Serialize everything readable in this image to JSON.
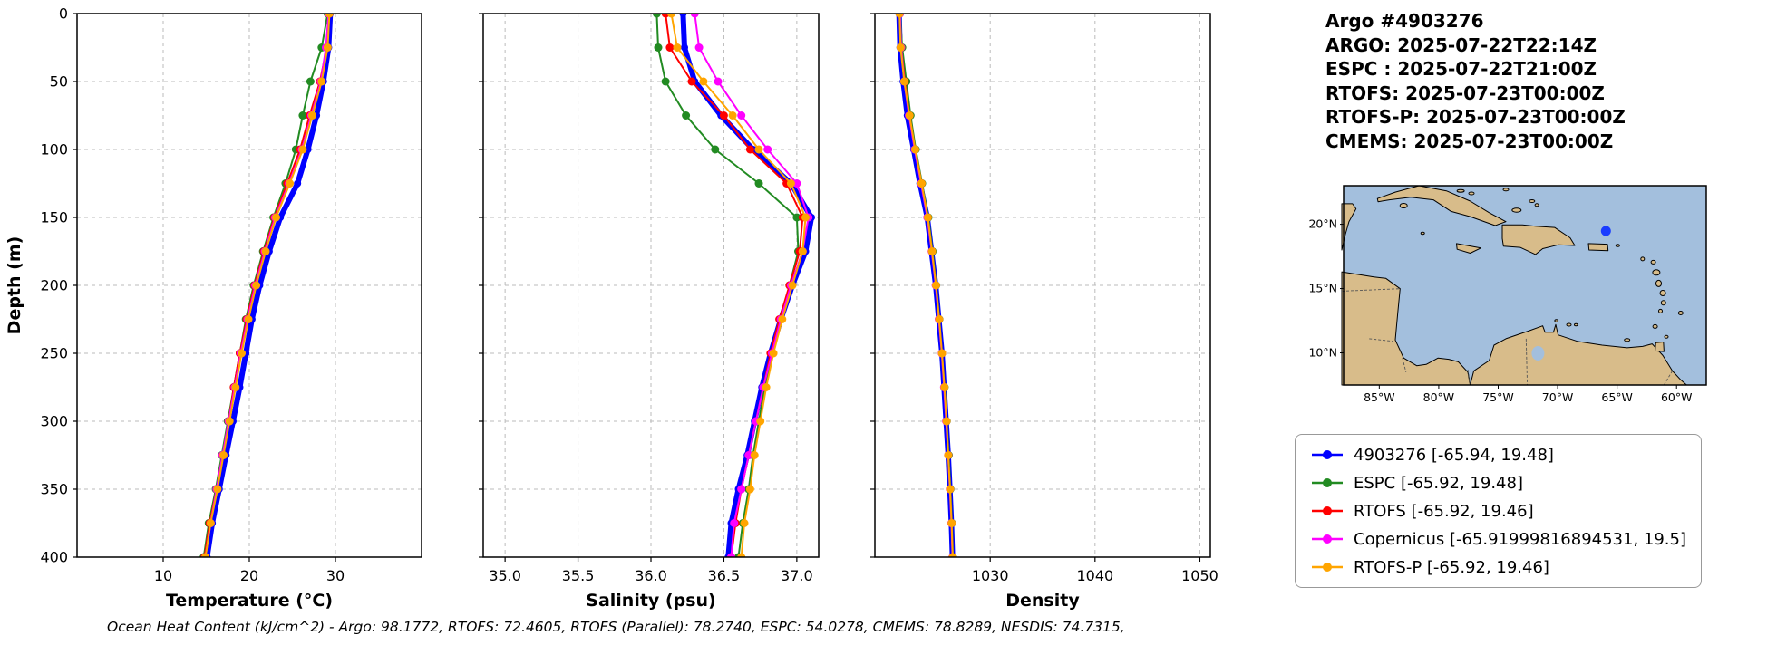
{
  "header": {
    "title": "Argo #4903276",
    "lines": [
      "ARGO: 2025-07-22T22:14Z",
      "ESPC : 2025-07-22T21:00Z",
      "RTOFS: 2025-07-23T00:00Z",
      "RTOFS-P: 2025-07-23T00:00Z",
      "CMEMS: 2025-07-23T00:00Z"
    ]
  },
  "footer": {
    "text": "Ocean Heat Content (kJ/cm^2) - Argo: 98.1772,  RTOFS: 72.4605,  RTOFS (Parallel): 78.2740,  ESPC: 54.0278,  CMEMS: 78.8289,  NESDIS: 74.7315,"
  },
  "legend": {
    "entries": [
      {
        "label": "4903276 [-65.94, 19.48]",
        "color": "#0000ff"
      },
      {
        "label": "ESPC [-65.92, 19.48]",
        "color": "#228b22"
      },
      {
        "label": "RTOFS [-65.92, 19.46]",
        "color": "#ff0000"
      },
      {
        "label": "Copernicus [-65.91999816894531, 19.5]",
        "color": "#ff00ff"
      },
      {
        "label": "RTOFS-P [-65.92, 19.46]",
        "color": "#ffa500"
      }
    ]
  },
  "map": {
    "extent": [
      -88,
      -57.5,
      7.5,
      23
    ],
    "xticks": [
      -85,
      -80,
      -75,
      -70,
      -65,
      -60
    ],
    "xtick_labels": [
      "85°W",
      "80°W",
      "75°W",
      "70°W",
      "65°W",
      "60°W"
    ],
    "yticks": [
      10,
      15,
      20
    ],
    "ytick_labels": [
      "10°N",
      "15°N",
      "20°N"
    ],
    "marker": {
      "lon": -65.94,
      "lat": 19.48,
      "color": "#1a3cff"
    },
    "ocean_color": "#a3bfdd",
    "land_color": "#d8bc8a"
  },
  "chart_data": [
    {
      "type": "line",
      "name": "temperature-profile",
      "xlabel": "Temperature (°C)",
      "ylabel": "Depth (m)",
      "xlim": [
        0,
        40
      ],
      "ylim": [
        0,
        400
      ],
      "xticks": [
        10,
        20,
        30
      ],
      "xtick_labels": [
        "10",
        "20",
        "30"
      ],
      "yticks": [
        0,
        50,
        100,
        150,
        200,
        250,
        300,
        350,
        400
      ],
      "show_ytick_labels": true,
      "grid": true,
      "depths": [
        0,
        25,
        50,
        75,
        100,
        125,
        150,
        175,
        200,
        225,
        250,
        275,
        300,
        325,
        350,
        375,
        400
      ],
      "series": [
        {
          "name": "4903276",
          "color": "#0000ff",
          "linewidth": 6,
          "markersize": 4,
          "values": [
            29.4,
            29.2,
            28.6,
            27.8,
            26.8,
            25.6,
            23.6,
            22.3,
            21.2,
            20.3,
            19.6,
            18.9,
            18.1,
            17.3,
            16.5,
            15.7,
            15.1
          ]
        },
        {
          "name": "ESPC",
          "color": "#228b22",
          "linewidth": 2,
          "markersize": 4.5,
          "values": [
            29.1,
            28.4,
            27.1,
            26.2,
            25.4,
            24.2,
            22.8,
            21.6,
            20.5,
            19.6,
            18.9,
            18.2,
            17.5,
            16.8,
            16.1,
            15.3,
            14.7
          ]
        },
        {
          "name": "RTOFS",
          "color": "#ff0000",
          "linewidth": 2,
          "markersize": 4.5,
          "values": [
            29.3,
            29.0,
            28.2,
            27.0,
            25.9,
            24.4,
            22.9,
            21.7,
            20.6,
            19.7,
            18.9,
            18.2,
            17.6,
            16.9,
            16.2,
            15.4,
            14.8
          ]
        },
        {
          "name": "Copernicus",
          "color": "#ff00ff",
          "linewidth": 2,
          "markersize": 4.5,
          "values": [
            29.2,
            28.9,
            28.3,
            27.2,
            26.1,
            24.6,
            23.0,
            21.8,
            20.7,
            19.8,
            19.0,
            18.3,
            17.6,
            16.9,
            16.2,
            15.5,
            14.9
          ]
        },
        {
          "name": "RTOFS-P",
          "color": "#ffa500",
          "linewidth": 2,
          "markersize": 4.5,
          "values": [
            29.3,
            29.1,
            28.4,
            27.3,
            26.2,
            24.7,
            23.1,
            21.9,
            20.8,
            19.9,
            19.1,
            18.4,
            17.7,
            17.0,
            16.3,
            15.5,
            14.9
          ]
        }
      ]
    },
    {
      "type": "line",
      "name": "salinity-profile",
      "xlabel": "Salinity (psu)",
      "ylabel": "",
      "xlim": [
        34.85,
        37.15
      ],
      "ylim": [
        0,
        400
      ],
      "xticks": [
        35.0,
        35.5,
        36.0,
        36.5,
        37.0
      ],
      "xtick_labels": [
        "35.0",
        "35.5",
        "36.0",
        "36.5",
        "37.0"
      ],
      "yticks": [
        0,
        50,
        100,
        150,
        200,
        250,
        300,
        350,
        400
      ],
      "show_ytick_labels": false,
      "grid": true,
      "depths": [
        0,
        25,
        50,
        75,
        100,
        125,
        150,
        175,
        200,
        225,
        250,
        275,
        300,
        325,
        350,
        375,
        400
      ],
      "series": [
        {
          "name": "4903276",
          "color": "#0000ff",
          "linewidth": 6,
          "markersize": 4,
          "values": [
            36.22,
            36.23,
            36.3,
            36.48,
            36.7,
            36.96,
            37.1,
            37.06,
            36.97,
            36.89,
            36.82,
            36.76,
            36.71,
            36.66,
            36.6,
            36.55,
            36.53
          ]
        },
        {
          "name": "ESPC",
          "color": "#228b22",
          "linewidth": 2,
          "markersize": 4.5,
          "values": [
            36.04,
            36.05,
            36.1,
            36.24,
            36.44,
            36.74,
            37.0,
            37.01,
            36.95,
            36.89,
            36.83,
            36.78,
            36.74,
            36.7,
            36.67,
            36.63,
            36.6
          ]
        },
        {
          "name": "RTOFS",
          "color": "#ff0000",
          "linewidth": 2,
          "markersize": 4.5,
          "values": [
            36.1,
            36.13,
            36.28,
            36.5,
            36.68,
            36.93,
            37.04,
            37.02,
            36.95,
            36.88,
            36.82,
            36.77,
            36.72,
            36.67,
            36.62,
            36.58,
            36.55
          ]
        },
        {
          "name": "Copernicus",
          "color": "#ff00ff",
          "linewidth": 2,
          "markersize": 4.5,
          "values": [
            36.3,
            36.33,
            36.46,
            36.62,
            36.8,
            37.0,
            37.08,
            37.04,
            36.96,
            36.89,
            36.83,
            36.77,
            36.72,
            36.67,
            36.62,
            36.57,
            36.55
          ]
        },
        {
          "name": "RTOFS-P",
          "color": "#ffa500",
          "linewidth": 2,
          "markersize": 4.5,
          "values": [
            36.14,
            36.18,
            36.36,
            36.56,
            36.74,
            36.96,
            37.06,
            37.04,
            36.97,
            36.9,
            36.84,
            36.79,
            36.75,
            36.71,
            36.68,
            36.64,
            36.62
          ]
        }
      ]
    },
    {
      "type": "line",
      "name": "density-profile",
      "xlabel": "Density",
      "ylabel": "",
      "xlim": [
        1019,
        1051
      ],
      "ylim": [
        0,
        400
      ],
      "xticks": [
        1030,
        1040,
        1050
      ],
      "xtick_labels": [
        "1030",
        "1040",
        "1050"
      ],
      "yticks": [
        0,
        50,
        100,
        150,
        200,
        250,
        300,
        350,
        400
      ],
      "show_ytick_labels": false,
      "grid": true,
      "depths": [
        0,
        25,
        50,
        75,
        100,
        125,
        150,
        175,
        200,
        225,
        250,
        275,
        300,
        325,
        350,
        375,
        400
      ],
      "series": [
        {
          "name": "4903276",
          "color": "#0000ff",
          "linewidth": 6,
          "markersize": 4,
          "values": [
            1021.3,
            1021.4,
            1021.7,
            1022.1,
            1022.7,
            1023.3,
            1024.0,
            1024.4,
            1024.8,
            1025.1,
            1025.4,
            1025.6,
            1025.8,
            1026.0,
            1026.15,
            1026.3,
            1026.4
          ]
        },
        {
          "name": "ESPC",
          "color": "#228b22",
          "linewidth": 2,
          "markersize": 4.5,
          "values": [
            1021.4,
            1021.6,
            1022.0,
            1022.4,
            1022.9,
            1023.5,
            1024.1,
            1024.5,
            1024.85,
            1025.15,
            1025.4,
            1025.65,
            1025.85,
            1026.05,
            1026.2,
            1026.35,
            1026.45
          ]
        },
        {
          "name": "RTOFS",
          "color": "#ff0000",
          "linewidth": 2,
          "markersize": 4.5,
          "values": [
            1021.35,
            1021.5,
            1021.85,
            1022.3,
            1022.85,
            1023.45,
            1024.05,
            1024.45,
            1024.82,
            1025.12,
            1025.4,
            1025.62,
            1025.82,
            1026.0,
            1026.17,
            1026.32,
            1026.42
          ]
        },
        {
          "name": "Copernicus",
          "color": "#ff00ff",
          "linewidth": 2,
          "markersize": 4.5,
          "values": [
            1021.4,
            1021.5,
            1021.8,
            1022.25,
            1022.8,
            1023.4,
            1024.0,
            1024.42,
            1024.8,
            1025.1,
            1025.38,
            1025.6,
            1025.8,
            1026.0,
            1026.15,
            1026.3,
            1026.4
          ]
        },
        {
          "name": "RTOFS-P",
          "color": "#ffa500",
          "linewidth": 2,
          "markersize": 4.5,
          "values": [
            1021.35,
            1021.45,
            1021.8,
            1022.3,
            1022.85,
            1023.45,
            1024.05,
            1024.45,
            1024.83,
            1025.13,
            1025.4,
            1025.63,
            1025.83,
            1026.0,
            1026.17,
            1026.32,
            1026.43
          ]
        }
      ]
    }
  ]
}
